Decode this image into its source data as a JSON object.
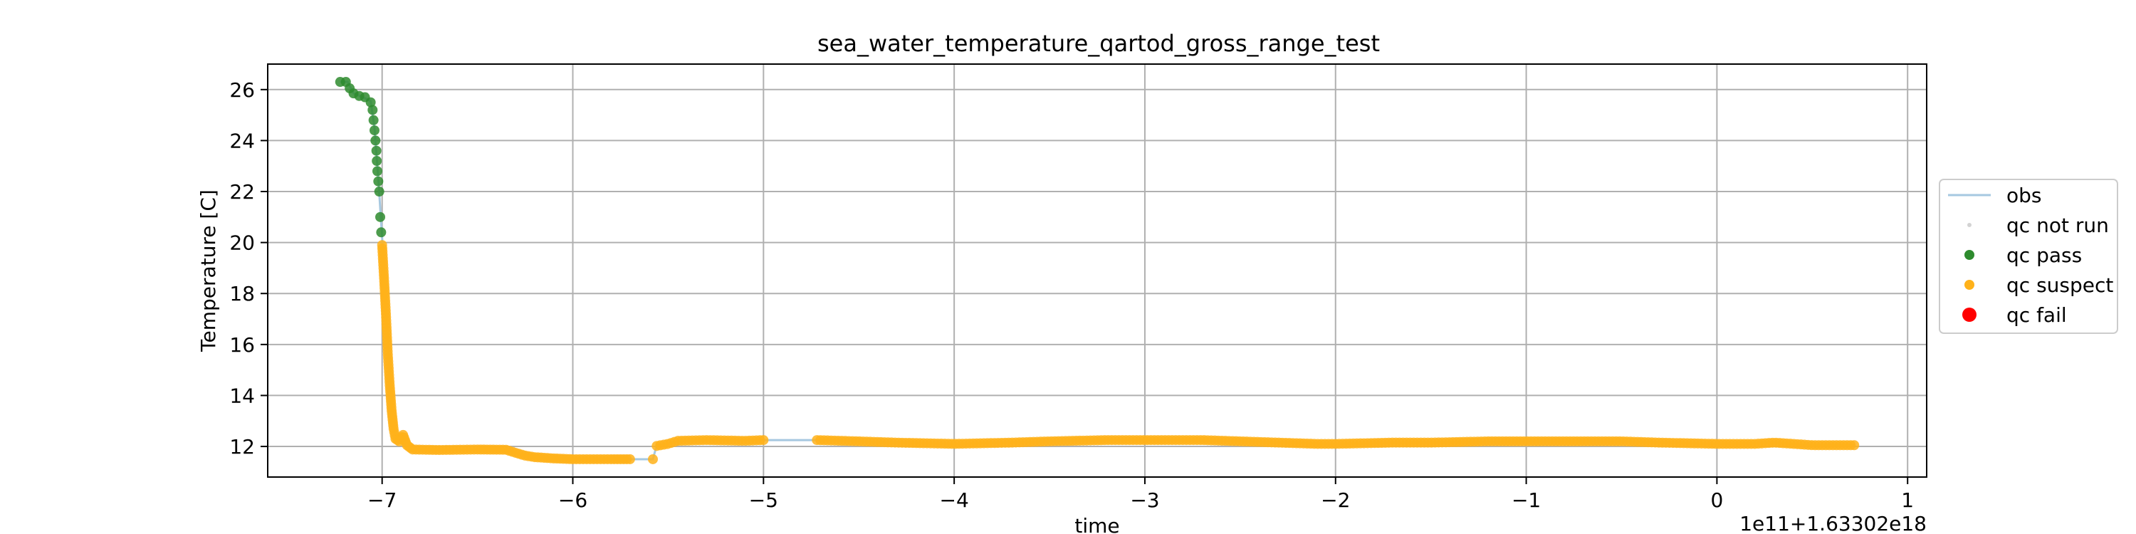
{
  "chart_data": {
    "type": "scatter",
    "title": "sea_water_temperature_qartod_gross_range_test",
    "xlabel": "time",
    "ylabel": "Temperature [C]",
    "x_offset_label": "1e11+1.63302e18",
    "xlim": [
      -7.6,
      1.1
    ],
    "ylim": [
      10.8,
      27.0
    ],
    "xticks": [
      -7,
      -6,
      -5,
      -4,
      -3,
      -2,
      -1,
      0,
      1
    ],
    "xtick_labels": [
      "−7",
      "−6",
      "−5",
      "−4",
      "−3",
      "−2",
      "−1",
      "0",
      "1"
    ],
    "yticks": [
      12,
      14,
      16,
      18,
      20,
      22,
      24,
      26
    ],
    "grid": true,
    "legend_position": "outside-right",
    "legend": [
      {
        "key": "obs",
        "label": "obs",
        "kind": "line",
        "color": "#a6c8e0"
      },
      {
        "key": "not_run",
        "label": "qc not run",
        "kind": "point",
        "color": "#d3d3d3"
      },
      {
        "key": "pass",
        "label": "qc pass",
        "kind": "point",
        "color": "#2e8b2e"
      },
      {
        "key": "suspect",
        "label": "qc suspect",
        "kind": "point",
        "color": "#ffb21a"
      },
      {
        "key": "fail",
        "label": "qc fail",
        "kind": "point",
        "color": "#ff0000"
      }
    ],
    "series": {
      "obs": [
        [
          -7.22,
          26.3
        ],
        [
          -7.18,
          26.3
        ],
        [
          -7.15,
          25.85
        ],
        [
          -7.1,
          25.7
        ],
        [
          -7.06,
          25.55
        ],
        [
          -7.04,
          24.5
        ],
        [
          -7.02,
          22.5
        ],
        [
          -7.0,
          20.2
        ],
        [
          -6.98,
          17.5
        ],
        [
          -6.96,
          14.8
        ],
        [
          -6.94,
          13.0
        ],
        [
          -6.92,
          12.3
        ],
        [
          -6.89,
          12.4
        ],
        [
          -6.85,
          11.9
        ],
        [
          -6.7,
          11.88
        ],
        [
          -6.4,
          11.87
        ],
        [
          -6.3,
          11.75
        ],
        [
          -6.25,
          11.62
        ],
        [
          -6.15,
          11.55
        ],
        [
          -6.0,
          11.5
        ],
        [
          -5.7,
          11.5
        ],
        [
          -5.58,
          11.5
        ],
        [
          -5.56,
          12.05
        ],
        [
          -5.5,
          12.1
        ],
        [
          -5.45,
          12.2
        ],
        [
          -5.2,
          12.25
        ],
        [
          -5.0,
          12.25
        ],
        [
          -4.72,
          12.25
        ],
        [
          -4.3,
          12.15
        ],
        [
          -4.0,
          12.1
        ],
        [
          -3.5,
          12.2
        ],
        [
          -3.0,
          12.25
        ],
        [
          -2.5,
          12.2
        ],
        [
          -2.0,
          12.1
        ],
        [
          -1.5,
          12.15
        ],
        [
          -1.0,
          12.2
        ],
        [
          -0.5,
          12.2
        ],
        [
          0.0,
          12.1
        ],
        [
          0.3,
          12.15
        ],
        [
          0.5,
          12.05
        ],
        [
          0.72,
          12.05
        ]
      ],
      "pass": [
        [
          -7.22,
          26.3
        ],
        [
          -7.19,
          26.3
        ],
        [
          -7.17,
          26.05
        ],
        [
          -7.15,
          25.85
        ],
        [
          -7.12,
          25.75
        ],
        [
          -7.09,
          25.7
        ],
        [
          -7.06,
          25.5
        ],
        [
          -7.05,
          25.2
        ],
        [
          -7.045,
          24.8
        ],
        [
          -7.04,
          24.4
        ],
        [
          -7.035,
          24.0
        ],
        [
          -7.03,
          23.6
        ],
        [
          -7.028,
          23.2
        ],
        [
          -7.025,
          22.8
        ],
        [
          -7.02,
          22.4
        ],
        [
          -7.015,
          22.0
        ],
        [
          -7.01,
          21.0
        ],
        [
          -7.005,
          20.4
        ]
      ],
      "suspect_anchors": [
        [
          -7.0,
          19.9
        ],
        [
          -6.99,
          18.6
        ],
        [
          -6.98,
          17.2
        ],
        [
          -6.97,
          15.6
        ],
        [
          -6.96,
          14.4
        ],
        [
          -6.95,
          13.4
        ],
        [
          -6.94,
          12.7
        ],
        [
          -6.93,
          12.3
        ],
        [
          -6.91,
          12.2
        ],
        [
          -6.89,
          12.45
        ],
        [
          -6.87,
          12.05
        ],
        [
          -6.84,
          11.88
        ],
        [
          -6.7,
          11.86
        ],
        [
          -6.5,
          11.88
        ],
        [
          -6.35,
          11.87
        ],
        [
          -6.3,
          11.75
        ],
        [
          -6.25,
          11.64
        ],
        [
          -6.2,
          11.58
        ],
        [
          -6.1,
          11.53
        ],
        [
          -6.0,
          11.5
        ],
        [
          -5.8,
          11.5
        ],
        [
          -5.7,
          11.5
        ]
      ],
      "suspect_isolated": [
        [
          -5.58,
          11.5
        ]
      ],
      "suspect_segments": [
        {
          "x_start": -5.56,
          "x_end": -5.0,
          "anchors": [
            [
              -5.56,
              12.02
            ],
            [
              -5.5,
              12.1
            ],
            [
              -5.45,
              12.22
            ],
            [
              -5.3,
              12.25
            ],
            [
              -5.1,
              12.22
            ],
            [
              -5.0,
              12.25
            ]
          ]
        },
        {
          "x_start": -4.72,
          "x_end": 0.72,
          "anchors": [
            [
              -4.72,
              12.25
            ],
            [
              -4.5,
              12.2
            ],
            [
              -4.3,
              12.15
            ],
            [
              -4.0,
              12.1
            ],
            [
              -3.7,
              12.15
            ],
            [
              -3.5,
              12.2
            ],
            [
              -3.2,
              12.25
            ],
            [
              -3.0,
              12.25
            ],
            [
              -2.7,
              12.25
            ],
            [
              -2.5,
              12.2
            ],
            [
              -2.3,
              12.15
            ],
            [
              -2.1,
              12.1
            ],
            [
              -2.0,
              12.1
            ],
            [
              -1.7,
              12.15
            ],
            [
              -1.5,
              12.15
            ],
            [
              -1.2,
              12.2
            ],
            [
              -1.0,
              12.2
            ],
            [
              -0.7,
              12.2
            ],
            [
              -0.5,
              12.2
            ],
            [
              -0.3,
              12.15
            ],
            [
              0.0,
              12.1
            ],
            [
              0.2,
              12.1
            ],
            [
              0.3,
              12.15
            ],
            [
              0.4,
              12.1
            ],
            [
              0.5,
              12.05
            ],
            [
              0.72,
              12.05
            ]
          ]
        }
      ]
    }
  }
}
